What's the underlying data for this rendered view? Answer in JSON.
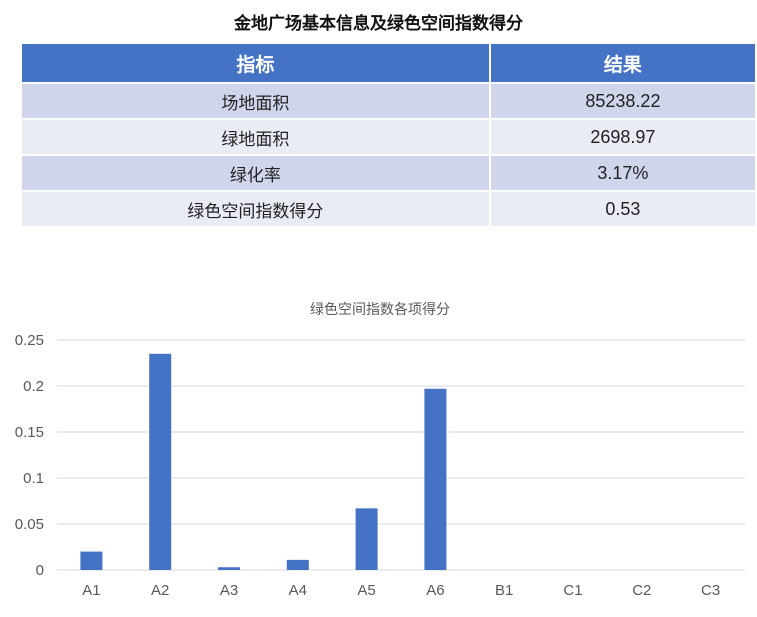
{
  "table": {
    "title": "金地广场基本信息及绿色空间指数得分",
    "headers": [
      "指标",
      "结果"
    ],
    "rows": [
      {
        "label": "场地面积",
        "value": "85238.22"
      },
      {
        "label": "绿地面积",
        "value": "2698.97"
      },
      {
        "label": "绿化率",
        "value": "3.17%"
      },
      {
        "label": "绿色空间指数得分",
        "value": "0.53"
      }
    ]
  },
  "chart_data": {
    "type": "bar",
    "title": "绿色空间指数各项得分",
    "categories": [
      "A1",
      "A2",
      "A3",
      "A4",
      "A5",
      "A6",
      "B1",
      "C1",
      "C2",
      "C3"
    ],
    "values": [
      0.02,
      0.235,
      0.003,
      0.011,
      0.067,
      0.197,
      0,
      0,
      0,
      0
    ],
    "ylim": [
      0,
      0.25
    ],
    "yticks": [
      "0",
      "0.05",
      "0.1",
      "0.15",
      "0.2",
      "0.25"
    ],
    "grid": true,
    "bar_color": "#4472c4"
  }
}
